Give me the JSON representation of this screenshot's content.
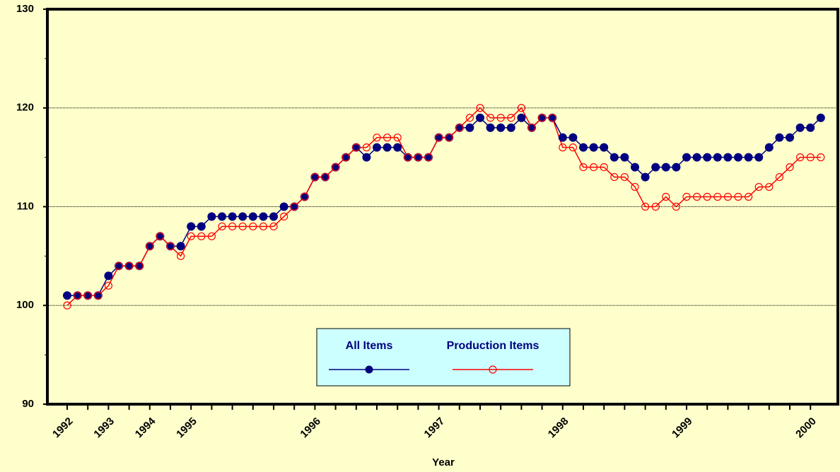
{
  "chart_data": {
    "type": "line",
    "x_label": "Year",
    "categories": [
      "1992",
      null,
      null,
      null,
      "1993",
      null,
      null,
      null,
      "1994",
      null,
      null,
      null,
      "1995",
      null,
      null,
      null,
      null,
      null,
      null,
      null,
      null,
      null,
      null,
      null,
      "1996",
      null,
      null,
      null,
      null,
      null,
      null,
      null,
      null,
      null,
      null,
      null,
      "1997",
      null,
      null,
      null,
      null,
      null,
      null,
      null,
      null,
      null,
      null,
      null,
      "1998",
      null,
      null,
      null,
      null,
      null,
      null,
      null,
      null,
      null,
      null,
      null,
      "1999",
      null,
      null,
      null,
      null,
      null,
      null,
      null,
      null,
      null,
      null,
      null,
      "2000",
      null
    ],
    "series": [
      {
        "name": "All Items",
        "color": "#000080",
        "marker": "filled",
        "values": [
          101,
          101,
          101,
          101,
          103,
          104,
          104,
          104,
          106,
          107,
          106,
          106,
          108,
          108,
          109,
          109,
          109,
          109,
          109,
          109,
          109,
          110,
          110,
          111,
          113,
          113,
          114,
          115,
          116,
          115,
          116,
          116,
          116,
          115,
          115,
          115,
          117,
          117,
          118,
          118,
          119,
          118,
          118,
          118,
          119,
          118,
          119,
          119,
          117,
          117,
          116,
          116,
          116,
          115,
          115,
          114,
          113,
          114,
          114,
          114,
          115,
          115,
          115,
          115,
          115,
          115,
          115,
          115,
          116,
          117,
          117,
          118,
          118,
          119
        ]
      },
      {
        "name": "Production Items",
        "color": "#ff0000",
        "marker": "open",
        "values": [
          100,
          101,
          101,
          101,
          102,
          104,
          104,
          104,
          106,
          107,
          106,
          105,
          107,
          107,
          107,
          108,
          108,
          108,
          108,
          108,
          108,
          109,
          110,
          111,
          113,
          113,
          114,
          115,
          116,
          116,
          117,
          117,
          117,
          115,
          115,
          115,
          117,
          117,
          118,
          119,
          120,
          119,
          119,
          119,
          120,
          118,
          119,
          119,
          116,
          116,
          114,
          114,
          114,
          113,
          113,
          112,
          110,
          110,
          111,
          110,
          111,
          111,
          111,
          111,
          111,
          111,
          111,
          112,
          112,
          113,
          114,
          115,
          115,
          115
        ]
      }
    ],
    "ylim": [
      90,
      130
    ],
    "yticks": [
      90,
      100,
      110,
      120,
      130
    ],
    "grid": true
  }
}
